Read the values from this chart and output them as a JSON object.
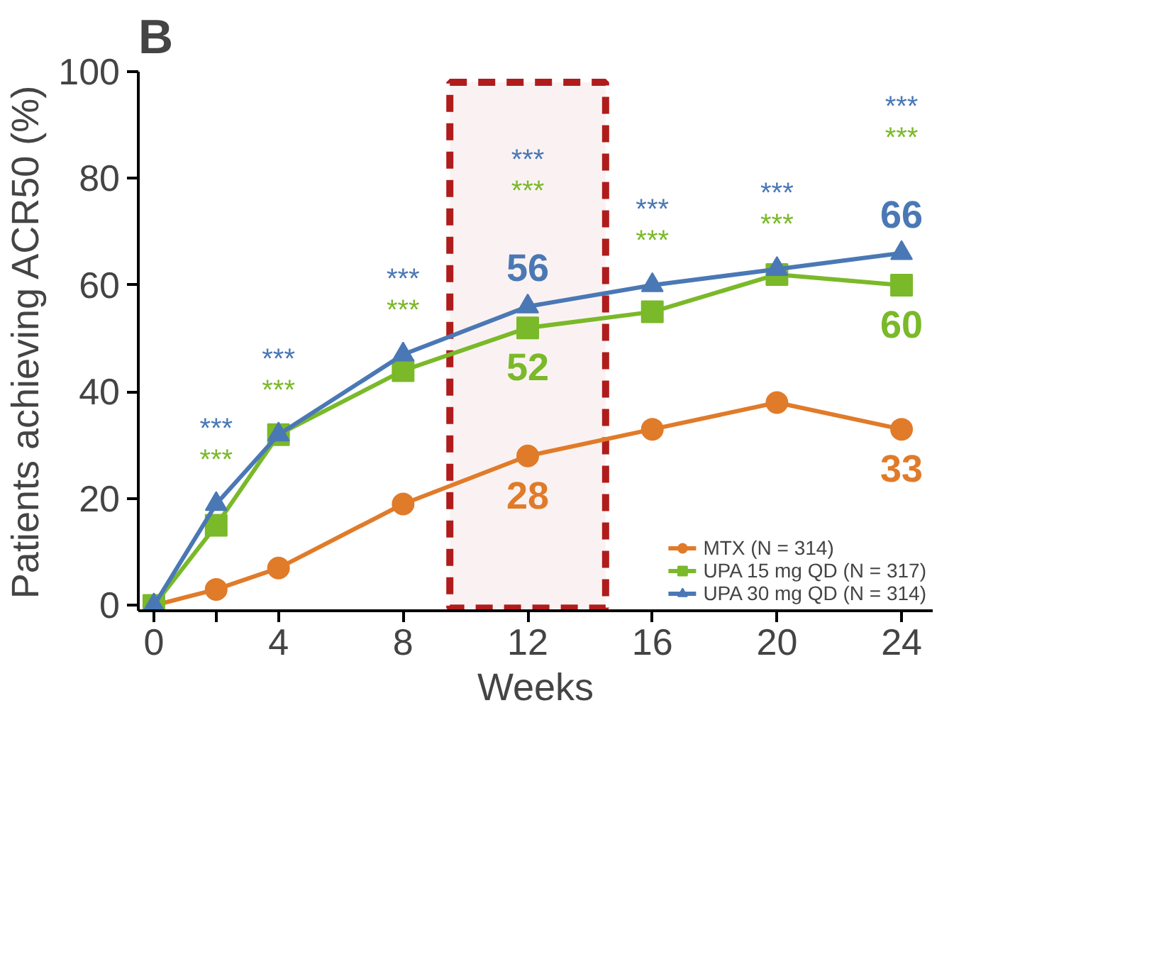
{
  "chart_data": {
    "type": "line",
    "title": "B",
    "xlabel": "Weeks",
    "ylabel": "Patients achieving ACR50 (%)",
    "x": [
      0,
      2,
      4,
      8,
      12,
      16,
      20,
      24
    ],
    "xlim": [
      -0.5,
      25
    ],
    "ylim": [
      -1,
      100
    ],
    "xticks": [
      0,
      {
        "value": 2,
        "label": null
      },
      4,
      8,
      12,
      16,
      20,
      24
    ],
    "yticks": [
      0,
      20,
      40,
      60,
      80,
      100
    ],
    "grid": false,
    "legend": "bottom right",
    "series": [
      {
        "name": "MTX (N = 314)",
        "color": "#e07b2a",
        "marker": "circle",
        "values": [
          0,
          3,
          7,
          19,
          28,
          33,
          38,
          33
        ],
        "value_labels": [
          null,
          null,
          null,
          null,
          "28",
          null,
          null,
          "33"
        ]
      },
      {
        "name": "UPA 15 mg QD (N = 317)",
        "color": "#7ab929",
        "marker": "square",
        "values": [
          0,
          15,
          32,
          44,
          52,
          55,
          62,
          60
        ],
        "value_labels": [
          null,
          null,
          null,
          null,
          "52",
          null,
          null,
          "60"
        ]
      },
      {
        "name": "UPA 30 mg QD (N = 314)",
        "color": "#4a78b5",
        "marker": "triangle",
        "values": [
          0,
          19,
          32,
          47,
          56,
          60,
          63,
          66
        ],
        "value_labels": [
          null,
          null,
          null,
          null,
          "56",
          null,
          null,
          "66"
        ]
      }
    ],
    "bands": [
      {
        "axis": "x",
        "from": 9.5,
        "to": 14.5,
        "color": "#b01c1c"
      }
    ],
    "annotations": [
      "***",
      "***",
      "***",
      "***",
      "***",
      "***",
      "***",
      "***",
      "***",
      "***",
      "***",
      "***",
      "***",
      "***"
    ]
  }
}
